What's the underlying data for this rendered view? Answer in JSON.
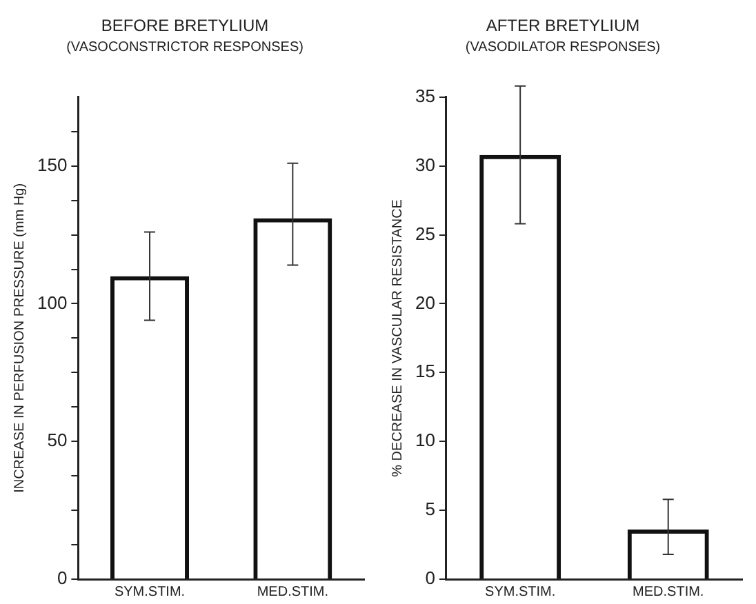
{
  "chart_data": [
    {
      "type": "bar",
      "title": "BEFORE BRETYLIUM",
      "subtitle": "(VASOCONSTRICTOR RESPONSES)",
      "ylabel": "INCREASE IN PERFUSION PRESSURE (mm Hg)",
      "categories": [
        "SYM.STIM.",
        "MED.STIM."
      ],
      "values": [
        110,
        131
      ],
      "errors": [
        [
          94,
          126
        ],
        [
          114,
          151
        ]
      ],
      "color": "#111111",
      "ylim": [
        0,
        175
      ],
      "yticks": [
        0,
        {
          "value": 12.5,
          "label": null
        },
        {
          "value": 25,
          "label": null
        },
        {
          "value": 37.5,
          "label": null
        },
        50,
        {
          "value": 62.5,
          "label": null
        },
        {
          "value": 75,
          "label": null
        },
        {
          "value": 87.5,
          "label": null
        },
        100,
        {
          "value": 112.5,
          "label": null
        },
        {
          "value": 125,
          "label": null
        },
        {
          "value": 137.5,
          "label": null
        },
        150,
        {
          "value": 162.5,
          "label": null
        }
      ],
      "grid": false,
      "legend": false
    },
    {
      "type": "bar",
      "title": "AFTER BRETYLIUM",
      "subtitle": "(VASODILATOR RESPONSES)",
      "ylabel": "% DECREASE IN VASCULAR RESISTANCE",
      "categories": [
        "SYM.STIM.",
        "MED.STIM."
      ],
      "values": [
        30.8,
        3.6
      ],
      "errors": [
        [
          25.8,
          35.8
        ],
        [
          1.8,
          5.8
        ]
      ],
      "color": "#111111",
      "ylim": [
        0,
        35
      ],
      "yticks": [
        0,
        5,
        10,
        15,
        20,
        25,
        30,
        35
      ],
      "grid": false,
      "legend": false
    }
  ]
}
